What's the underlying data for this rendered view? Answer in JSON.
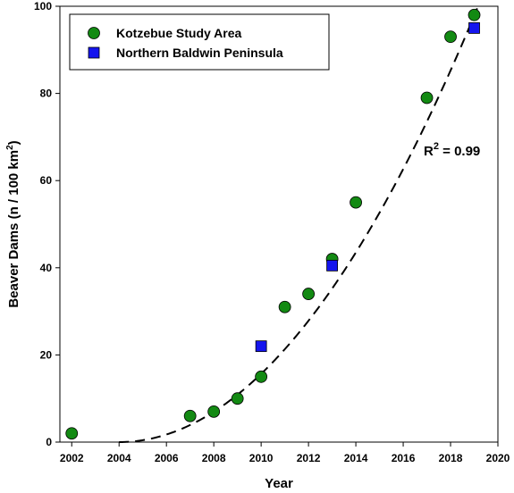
{
  "chart_data": {
    "type": "scatter",
    "title": "",
    "xlabel": "Year",
    "ylabel": "Beaver Dams (n / 100 km2)",
    "ylabel_main": "Beaver Dams (n / 100 km",
    "ylabel_sup": "2",
    "ylabel_end": ")",
    "xlim": [
      2001.5,
      2020
    ],
    "ylim": [
      0,
      100
    ],
    "xticks": [
      2002,
      2004,
      2006,
      2008,
      2010,
      2012,
      2014,
      2016,
      2018,
      2020
    ],
    "yticks": [
      0,
      20,
      40,
      60,
      80,
      100
    ],
    "grid": false,
    "legend_position": "top-left",
    "series": [
      {
        "name": "Kotzebue Study Area",
        "marker": "circle",
        "color": "#138a13",
        "points": [
          [
            2002,
            2
          ],
          [
            2007,
            6
          ],
          [
            2008,
            7
          ],
          [
            2009,
            10
          ],
          [
            2010,
            15
          ],
          [
            2011,
            31
          ],
          [
            2012,
            34
          ],
          [
            2013,
            42
          ],
          [
            2014,
            55
          ],
          [
            2017,
            79
          ],
          [
            2018,
            93
          ],
          [
            2019,
            98
          ]
        ]
      },
      {
        "name": "Northern Baldwin Peninsula",
        "marker": "square",
        "color": "#1515ee",
        "points": [
          [
            2010,
            22
          ],
          [
            2013,
            40.5
          ],
          [
            2019,
            95
          ]
        ]
      }
    ],
    "fit": {
      "style": "dashed",
      "description": "quadratic fit",
      "coefficients": {
        "vertex_x": 2004,
        "a": 0.435
      },
      "r_squared_label": "R",
      "r_squared_sup": "2",
      "r_squared_value": " = 0.99"
    }
  }
}
